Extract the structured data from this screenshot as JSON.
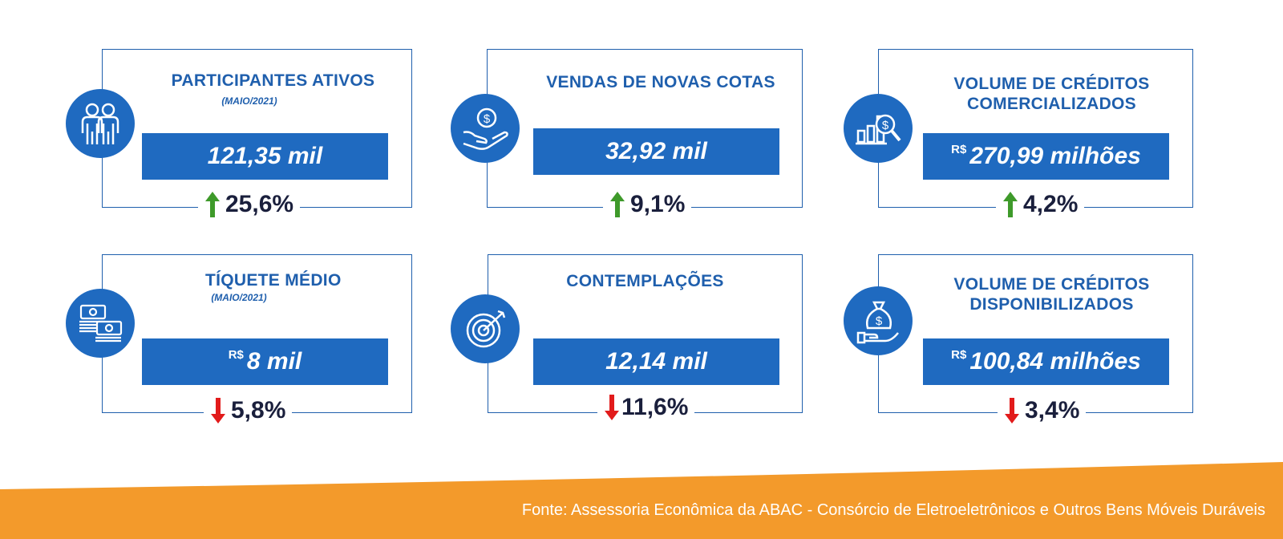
{
  "cards": [
    {
      "title_lines": [
        "PARTICIPANTES ATIVOS"
      ],
      "subtitle": "(MAIO/2021)",
      "currency": "",
      "value": "121,35 mil",
      "change": "25,6%",
      "direction": "up",
      "icon": "people-icon"
    },
    {
      "title_lines": [
        "VENDAS DE NOVAS COTAS"
      ],
      "subtitle": "",
      "currency": "",
      "value": "32,92 mil",
      "change": "9,1%",
      "direction": "up",
      "icon": "hand-coin-icon"
    },
    {
      "title_lines": [
        "VOLUME DE CRÉDITOS",
        "COMERCIALIZADOS"
      ],
      "subtitle": "",
      "currency": "R$",
      "value": "270,99 milhões",
      "change": "4,2%",
      "direction": "up",
      "icon": "chart-magnifier-icon"
    },
    {
      "title_lines": [
        "TÍQUETE MÉDIO"
      ],
      "subtitle": "(MAIO/2021)",
      "currency": "R$",
      "value": "8 mil",
      "change": "5,8%",
      "direction": "down",
      "icon": "money-stack-icon"
    },
    {
      "title_lines": [
        "CONTEMPLAÇÕES"
      ],
      "subtitle": "",
      "currency": "",
      "value": "12,14 mil",
      "change": "11,6%",
      "direction": "down",
      "icon": "target-icon"
    },
    {
      "title_lines": [
        "VOLUME DE CRÉDITOS",
        "DISPONIBILIZADOS"
      ],
      "subtitle": "",
      "currency": "R$",
      "value": "100,84 milhões",
      "change": "3,4%",
      "direction": "down",
      "icon": "money-bag-hand-icon"
    }
  ],
  "colors": {
    "up": "#3e9a2a",
    "down": "#e21b1b",
    "accent": "#1f6ac0",
    "footer": "#f39a2b"
  },
  "footer": {
    "text": "Fonte: Assessoria Econômica da ABAC - Consórcio de Eletroeletrônicos e Outros Bens Móveis Duráveis"
  }
}
